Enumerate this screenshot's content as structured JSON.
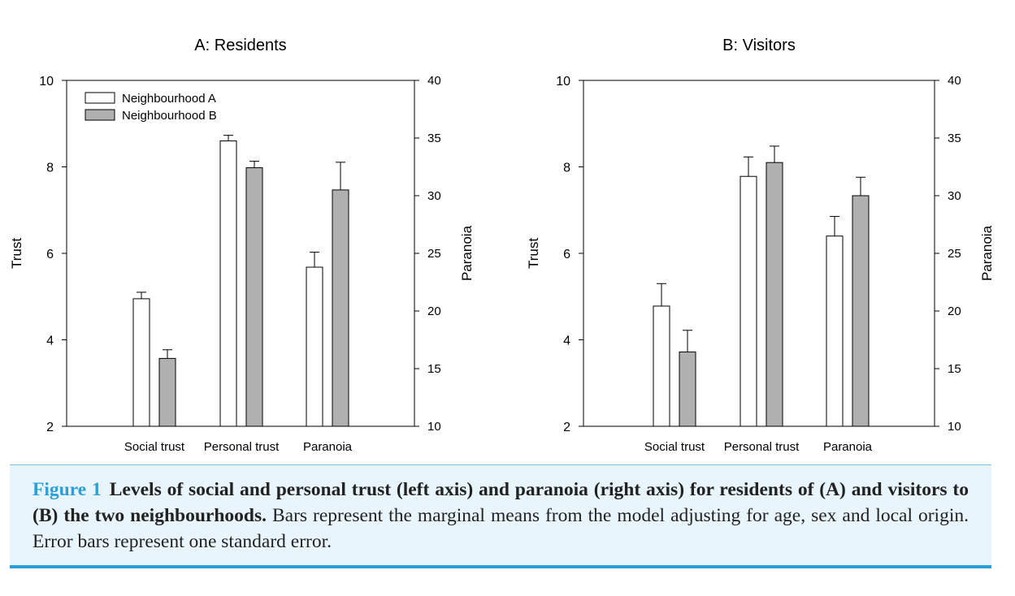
{
  "chart_data": [
    {
      "type": "bar",
      "title": "A: Residents",
      "categories": [
        "Social trust",
        "Personal trust",
        "Paranoia"
      ],
      "ylabel": "Trust",
      "y2label": "Paranoia",
      "ylim": [
        2,
        10
      ],
      "y2lim": [
        10,
        40
      ],
      "yticks": [
        2,
        4,
        6,
        8,
        10
      ],
      "y2ticks": [
        10,
        15,
        20,
        25,
        30,
        35,
        40
      ],
      "legend": "top-left",
      "axis_note": "Social trust and Personal trust use the left Trust axis; Paranoia uses the right Paranoia axis",
      "series": [
        {
          "name": "Neighbourhood A",
          "color": "#ffffff",
          "values": [
            4.95,
            8.6,
            23.8
          ],
          "errors": [
            0.15,
            0.13,
            1.3
          ]
        },
        {
          "name": "Neighbourhood B",
          "color": "#b0b0b0",
          "values": [
            3.57,
            7.98,
            30.5
          ],
          "errors": [
            0.2,
            0.15,
            2.4
          ]
        }
      ]
    },
    {
      "type": "bar",
      "title": "B: Visitors",
      "categories": [
        "Social trust",
        "Personal trust",
        "Paranoia"
      ],
      "ylabel": "Trust",
      "y2label": "Paranoia",
      "ylim": [
        2,
        10
      ],
      "y2lim": [
        10,
        40
      ],
      "yticks": [
        2,
        4,
        6,
        8,
        10
      ],
      "y2ticks": [
        10,
        15,
        20,
        25,
        30,
        35,
        40
      ],
      "axis_note": "Social trust and Personal trust use the left Trust axis; Paranoia uses the right Paranoia axis",
      "series": [
        {
          "name": "Neighbourhood A",
          "color": "#ffffff",
          "values": [
            4.78,
            7.78,
            26.5
          ],
          "errors": [
            0.52,
            0.45,
            1.7
          ]
        },
        {
          "name": "Neighbourhood B",
          "color": "#b0b0b0",
          "values": [
            3.72,
            8.1,
            30.0
          ],
          "errors": [
            0.5,
            0.38,
            1.6
          ]
        }
      ]
    }
  ],
  "caption": {
    "label": "Figure 1",
    "bold_text": "Levels of social and personal trust (left axis) and paranoia (right axis) for residents of (A) and visitors to (B) the two neighbourhoods.",
    "text": " Bars represent the marginal means from the model adjusting for age, sex and local origin. Error bars represent one standard error."
  }
}
